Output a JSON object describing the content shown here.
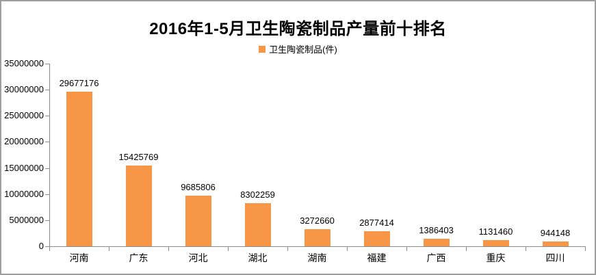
{
  "chart_data": {
    "type": "bar",
    "title": "2016年1-5月卫生陶瓷制品产量前十排名",
    "legend": {
      "label": "卫生陶瓷制品(件)"
    },
    "categories": [
      "河南",
      "广东",
      "河北",
      "湖北",
      "湖南",
      "福建",
      "广西",
      "重庆",
      "四川"
    ],
    "series": [
      {
        "name": "卫生陶瓷制品(件)",
        "values": [
          29677176,
          15425769,
          9685806,
          8302259,
          3272660,
          2877414,
          1386403,
          1131460,
          944148
        ]
      }
    ],
    "data_labels": [
      "29677176",
      "15425769",
      "9685806",
      "8302259",
      "3272660",
      "2877414",
      "1386403",
      "1131460",
      "944148"
    ],
    "xlabel": "",
    "ylabel": "",
    "ylim": [
      0,
      35000000
    ],
    "ytick_step": 5000000,
    "ytick_labels": [
      "0",
      "5000000",
      "10000000",
      "15000000",
      "20000000",
      "25000000",
      "30000000",
      "35000000"
    ],
    "grid": false,
    "legend_position": "top",
    "colors": {
      "bar": "#F79646",
      "axis": "#8C8C8C",
      "text": "#000000",
      "frame_border": "#9E9E9E",
      "background": "#FFFFFF"
    }
  }
}
